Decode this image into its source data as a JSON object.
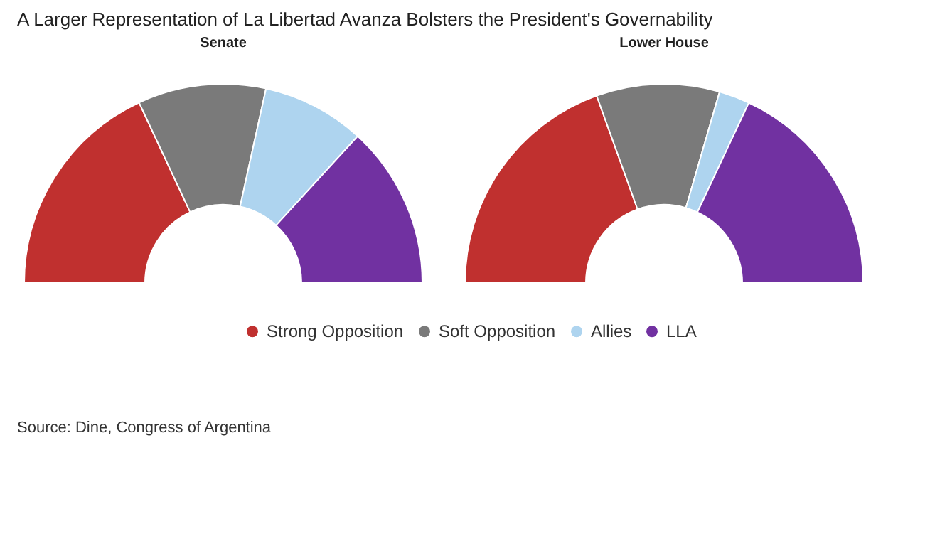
{
  "chart_data": {
    "type": "donut",
    "title": "A Larger Representation of La Libertad Avanza Bolsters the President's Governability",
    "categories": [
      "Strong Opposition",
      "Soft Opposition",
      "Allies",
      "LLA"
    ],
    "colors": [
      "#c0302f",
      "#7a7a7a",
      "#aed4ef",
      "#7131a1"
    ],
    "series": [
      {
        "name": "Senate",
        "values": [
          36.1,
          20.8,
          16.7,
          26.4
        ]
      },
      {
        "name": "Lower House",
        "values": [
          39,
          20,
          5,
          36
        ]
      }
    ],
    "legend": "bottom",
    "annotations": [
      "Source: Dine, Congress of Argentina"
    ]
  }
}
